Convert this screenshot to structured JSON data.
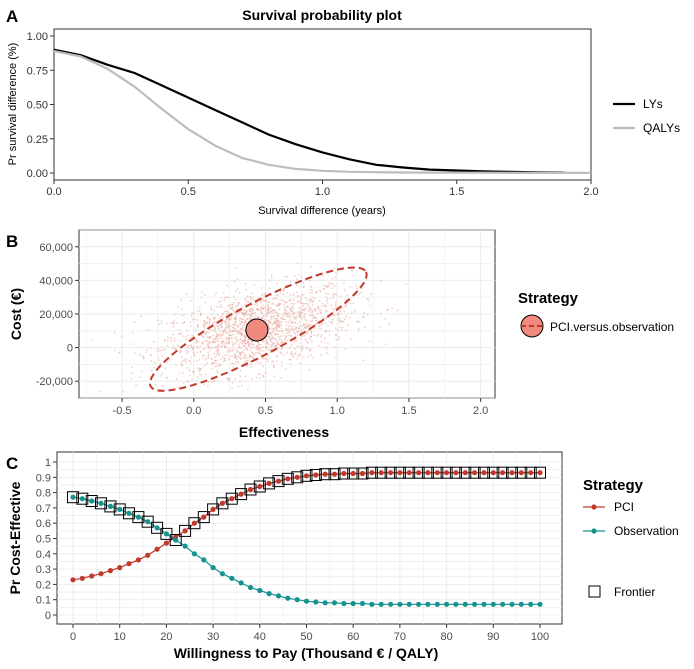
{
  "panels": {
    "a": {
      "letter": "A"
    },
    "b": {
      "letter": "B"
    },
    "c": {
      "letter": "C"
    }
  },
  "colors": {
    "lys": "#000000",
    "qalys": "#bdbdbd",
    "pci": "#c0392b",
    "pci_scatter": "#e8a59c",
    "pci_marker_fill": "#f08a7e",
    "observation": "#16938e",
    "frontier": "#000000",
    "grid": "#ebebeb"
  },
  "chart_data": [
    {
      "id": "survival",
      "type": "line",
      "title": "Survival probability plot",
      "xlabel": "Survival difference (years)",
      "ylabel": "Pr survival difference (%)",
      "xlim": [
        0,
        2.0
      ],
      "ylim": [
        0,
        1.0
      ],
      "xticks": [
        "0.0",
        "0.5",
        "1.0",
        "1.5",
        "2.0"
      ],
      "yticks": [
        "0.00",
        "0.25",
        "0.50",
        "0.75",
        "1.00"
      ],
      "grid": false,
      "legend": "right",
      "series": [
        {
          "name": "LYs",
          "color_key": "lys",
          "x": [
            0,
            0.1,
            0.2,
            0.3,
            0.4,
            0.5,
            0.6,
            0.7,
            0.8,
            0.9,
            1.0,
            1.1,
            1.2,
            1.3,
            1.4,
            1.5,
            1.6,
            1.7,
            1.8,
            1.9
          ],
          "y": [
            0.9,
            0.86,
            0.79,
            0.73,
            0.64,
            0.55,
            0.46,
            0.37,
            0.28,
            0.21,
            0.15,
            0.1,
            0.06,
            0.04,
            0.025,
            0.018,
            0.012,
            0.008,
            0.005,
            0.003
          ]
        },
        {
          "name": "QALYs",
          "color_key": "qalys",
          "x": [
            0,
            0.1,
            0.2,
            0.3,
            0.4,
            0.5,
            0.6,
            0.7,
            0.8,
            0.9,
            1.0,
            1.1,
            1.2,
            1.3,
            1.4,
            1.5,
            1.6,
            1.7,
            1.8,
            1.9,
            2.0
          ],
          "y": [
            0.89,
            0.85,
            0.76,
            0.63,
            0.47,
            0.32,
            0.2,
            0.11,
            0.06,
            0.03,
            0.016,
            0.009,
            0.006,
            0.004,
            0.003,
            0.002,
            0.002,
            0.001,
            0.001,
            0.001,
            0.001
          ]
        }
      ]
    },
    {
      "id": "ce-plane",
      "type": "scatter",
      "xlabel": "Effectiveness",
      "ylabel": "Cost (€)",
      "xlim": [
        -0.8,
        2.1
      ],
      "ylim": [
        -30000,
        70000
      ],
      "xticks": [
        "-0.5",
        "0.0",
        "0.5",
        "1.0",
        "1.5",
        "2.0"
      ],
      "yticks": [
        "-20,000",
        "0",
        "20,000",
        "40,000",
        "60,000"
      ],
      "grid": true,
      "legend": "right",
      "legend_title": "Strategy",
      "series": [
        {
          "name": "PCI.versus.observation",
          "color_key": "pci",
          "mean": {
            "x": 0.44,
            "y": 10500
          },
          "ellipse": {
            "cx": 0.45,
            "cy": 11000,
            "rx": 0.85,
            "ry": 0.18,
            "angle_deg": 28
          },
          "cloud": {
            "n": 1700,
            "sd_x": 0.33,
            "sd_y": 12000,
            "slope": 17000
          }
        }
      ]
    },
    {
      "id": "ceac",
      "type": "line",
      "xlabel": "Willingness to Pay (Thousand € / QALY)",
      "ylabel": "Pr Cost-Effective",
      "xlim": [
        0,
        100
      ],
      "ylim": [
        0,
        1
      ],
      "xticks": [
        "0",
        "10",
        "20",
        "30",
        "40",
        "50",
        "60",
        "70",
        "80",
        "90",
        "100"
      ],
      "yticks": [
        "0",
        "0.1",
        "0.2",
        "0.3",
        "0.4",
        "0.5",
        "0.6",
        "0.7",
        "0.8",
        "0.9",
        "1"
      ],
      "grid": true,
      "legend": "right",
      "legend_title": "Strategy",
      "frontier_label": "Frontier",
      "x": [
        0,
        2,
        4,
        6,
        8,
        10,
        12,
        14,
        16,
        18,
        20,
        22,
        24,
        26,
        28,
        30,
        32,
        34,
        36,
        38,
        40,
        42,
        44,
        46,
        48,
        50,
        52,
        54,
        56,
        58,
        60,
        62,
        64,
        66,
        68,
        70,
        72,
        74,
        76,
        78,
        80,
        82,
        84,
        86,
        88,
        90,
        92,
        94,
        96,
        98,
        100
      ],
      "series": [
        {
          "name": "PCI",
          "color_key": "pci",
          "y": [
            0.23,
            0.24,
            0.255,
            0.27,
            0.29,
            0.31,
            0.335,
            0.36,
            0.39,
            0.43,
            0.47,
            0.51,
            0.55,
            0.6,
            0.64,
            0.69,
            0.73,
            0.76,
            0.79,
            0.82,
            0.84,
            0.86,
            0.875,
            0.89,
            0.9,
            0.91,
            0.915,
            0.92,
            0.92,
            0.925,
            0.925,
            0.925,
            0.93,
            0.93,
            0.93,
            0.93,
            0.93,
            0.93,
            0.93,
            0.93,
            0.93,
            0.93,
            0.93,
            0.93,
            0.93,
            0.93,
            0.93,
            0.93,
            0.93,
            0.93,
            0.93
          ]
        },
        {
          "name": "Observation",
          "color_key": "observation",
          "y": [
            0.77,
            0.76,
            0.745,
            0.73,
            0.71,
            0.69,
            0.665,
            0.64,
            0.61,
            0.57,
            0.53,
            0.49,
            0.45,
            0.4,
            0.36,
            0.31,
            0.27,
            0.24,
            0.21,
            0.18,
            0.16,
            0.14,
            0.125,
            0.11,
            0.1,
            0.09,
            0.085,
            0.08,
            0.08,
            0.075,
            0.075,
            0.075,
            0.07,
            0.07,
            0.07,
            0.07,
            0.07,
            0.07,
            0.07,
            0.07,
            0.07,
            0.07,
            0.07,
            0.07,
            0.07,
            0.07,
            0.07,
            0.07,
            0.07,
            0.07,
            0.07
          ]
        }
      ],
      "frontier_switch_after_x": 22
    }
  ]
}
